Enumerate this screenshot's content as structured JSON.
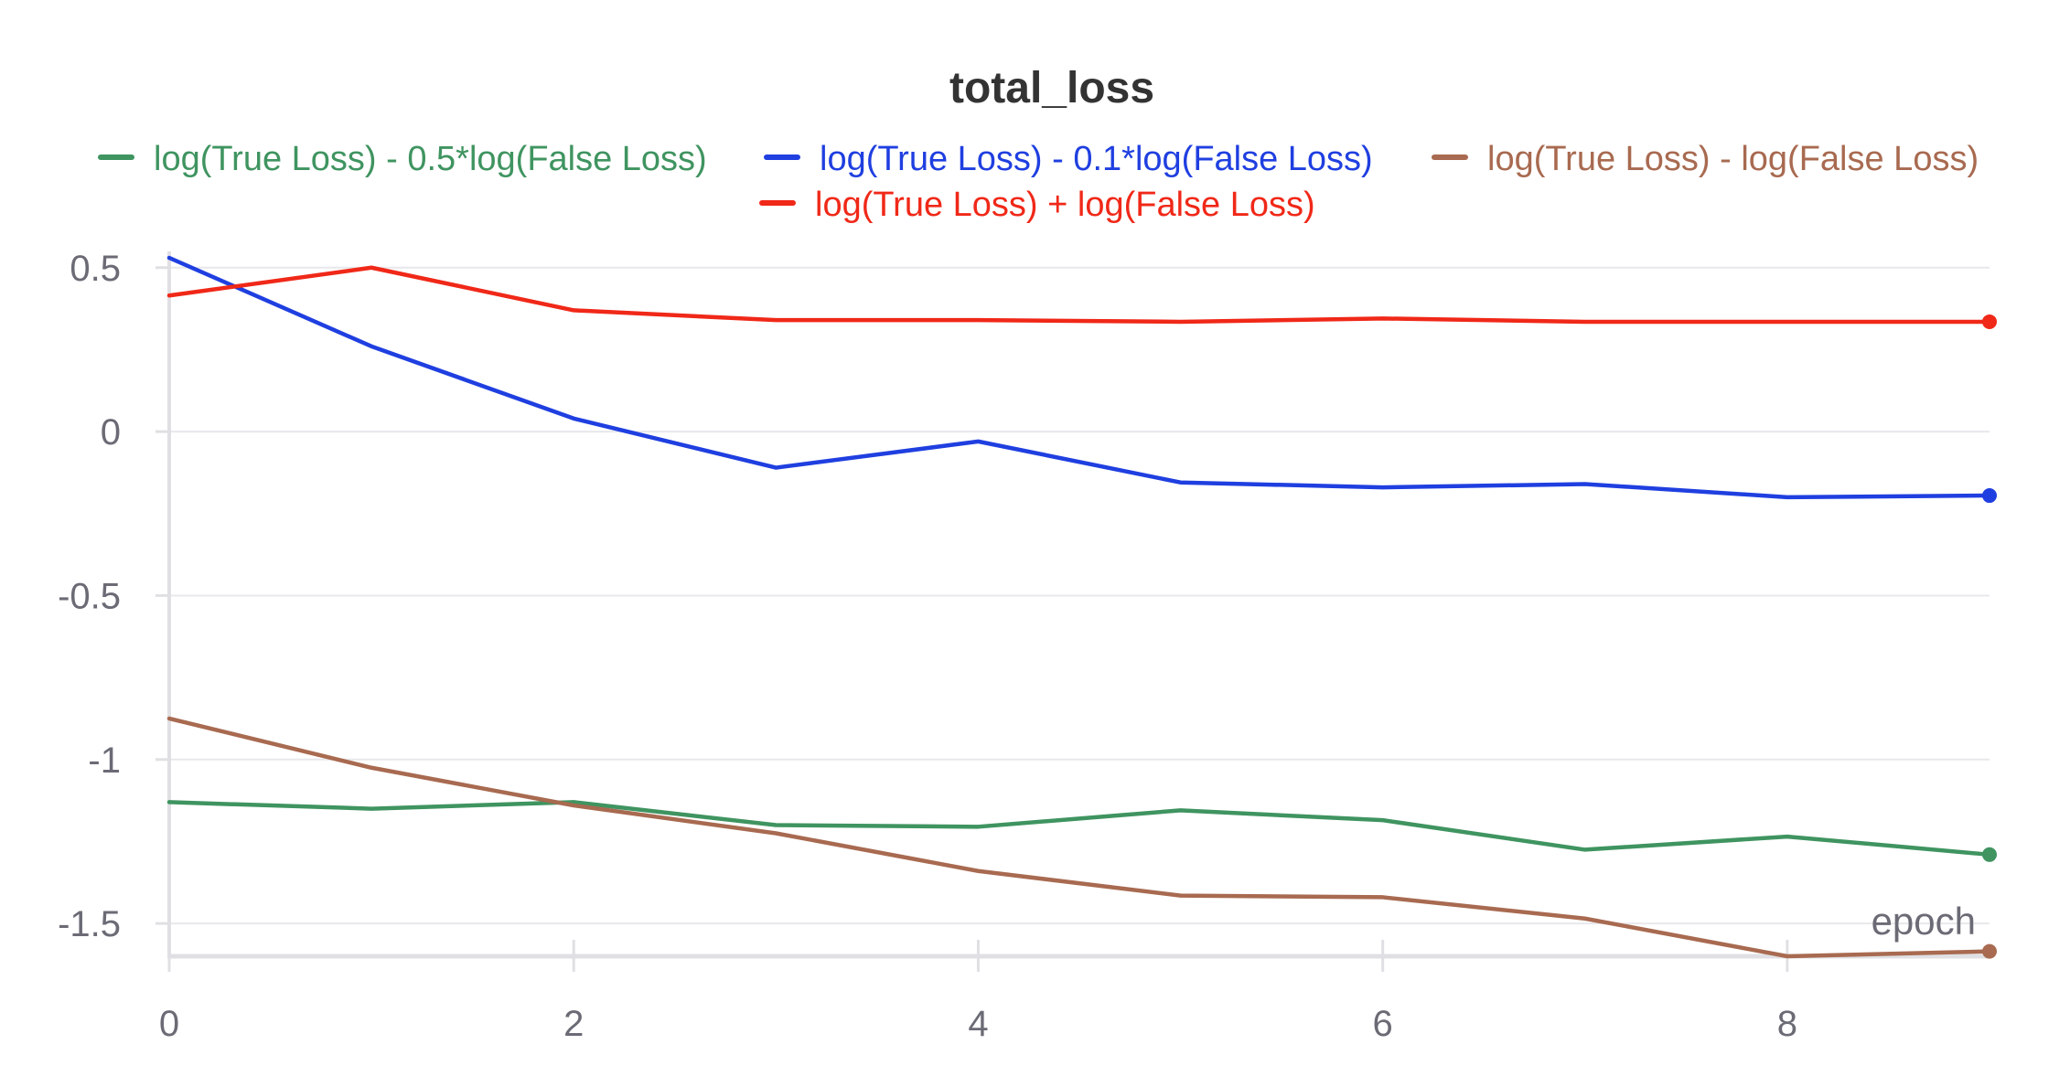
{
  "chart_data": {
    "type": "line",
    "title": "total_loss",
    "xlabel": "epoch",
    "ylabel": "",
    "xlim": [
      0,
      9
    ],
    "ylim": [
      -1.6,
      0.53
    ],
    "x_ticks": [
      0,
      2,
      4,
      6,
      8
    ],
    "x_tick_labels": [
      "0",
      "2",
      "4",
      "6",
      "8"
    ],
    "y_ticks": [
      0.5,
      0,
      -0.5,
      -1,
      -1.5
    ],
    "y_tick_labels": [
      "0.5",
      "0",
      "-0.5",
      "-1",
      "-1.5"
    ],
    "grid": true,
    "legend_position": "top",
    "x": [
      0,
      1,
      2,
      3,
      4,
      5,
      6,
      7,
      8,
      9
    ],
    "series": [
      {
        "name": "log(True Loss) - 0.5*log(False Loss)",
        "color": "#3f9460",
        "values": [
          -1.13,
          -1.15,
          -1.13,
          -1.2,
          -1.205,
          -1.155,
          -1.185,
          -1.275,
          -1.235,
          -1.29
        ]
      },
      {
        "name": "log(True Loss) - 0.1*log(False Loss)",
        "color": "#1f3fe0",
        "values": [
          0.53,
          0.26,
          0.04,
          -0.11,
          -0.03,
          -0.155,
          -0.17,
          -0.16,
          -0.2,
          -0.195
        ]
      },
      {
        "name": "log(True Loss) - log(False Loss)",
        "color": "#a86a50",
        "values": [
          -0.875,
          -1.025,
          -1.14,
          -1.225,
          -1.34,
          -1.415,
          -1.42,
          -1.485,
          -1.6,
          -1.585
        ]
      },
      {
        "name": "log(True Loss) + log(False Loss)",
        "color": "#f02818",
        "values": [
          0.415,
          0.5,
          0.37,
          0.34,
          0.34,
          0.335,
          0.345,
          0.335,
          0.335,
          0.335
        ]
      }
    ]
  }
}
